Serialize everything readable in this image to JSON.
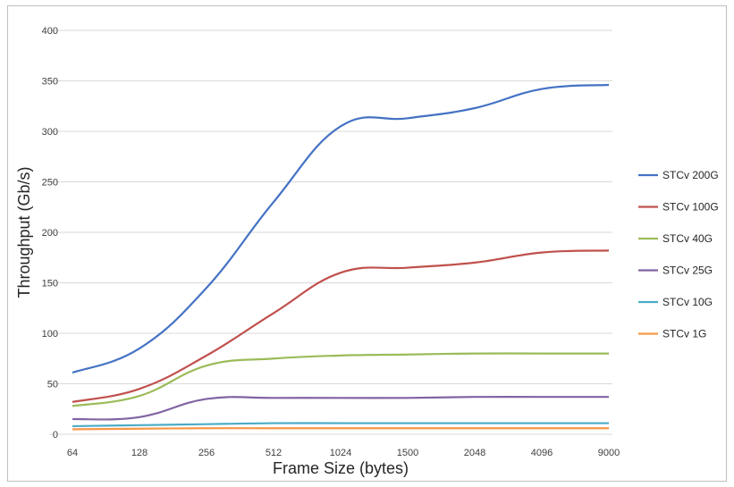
{
  "chart_data": {
    "type": "line",
    "title": "",
    "xlabel": "Frame Size (bytes)",
    "ylabel": "Throughput (Gb/s)",
    "categories": [
      "64",
      "128",
      "256",
      "512",
      "1024",
      "1500",
      "2048",
      "4096",
      "9000"
    ],
    "ylim": [
      0,
      400
    ],
    "yticks": [
      0,
      50,
      100,
      150,
      200,
      250,
      300,
      350,
      400
    ],
    "grid": true,
    "legend_position": "right",
    "series": [
      {
        "name": "STCv 200G",
        "color": "#4472c4",
        "values": [
          61,
          85,
          145,
          230,
          305,
          313,
          323,
          342,
          346
        ]
      },
      {
        "name": "STCv 100G",
        "color": "#c0504d",
        "values": [
          32,
          45,
          78,
          120,
          160,
          165,
          170,
          180,
          182
        ]
      },
      {
        "name": "STCv 40G",
        "color": "#9bbb59",
        "values": [
          28,
          38,
          68,
          75,
          78,
          79,
          80,
          80,
          80
        ]
      },
      {
        "name": "STCv 25G",
        "color": "#8064a2",
        "values": [
          15,
          17,
          35,
          36,
          36,
          36,
          37,
          37,
          37
        ]
      },
      {
        "name": "STCv 10G",
        "color": "#4bacc6",
        "values": [
          8,
          9,
          10,
          11,
          11,
          11,
          11,
          11,
          11
        ]
      },
      {
        "name": "STCv 1G",
        "color": "#f79646",
        "values": [
          5,
          5.5,
          6,
          6,
          6,
          6,
          6,
          6,
          6
        ]
      }
    ]
  }
}
